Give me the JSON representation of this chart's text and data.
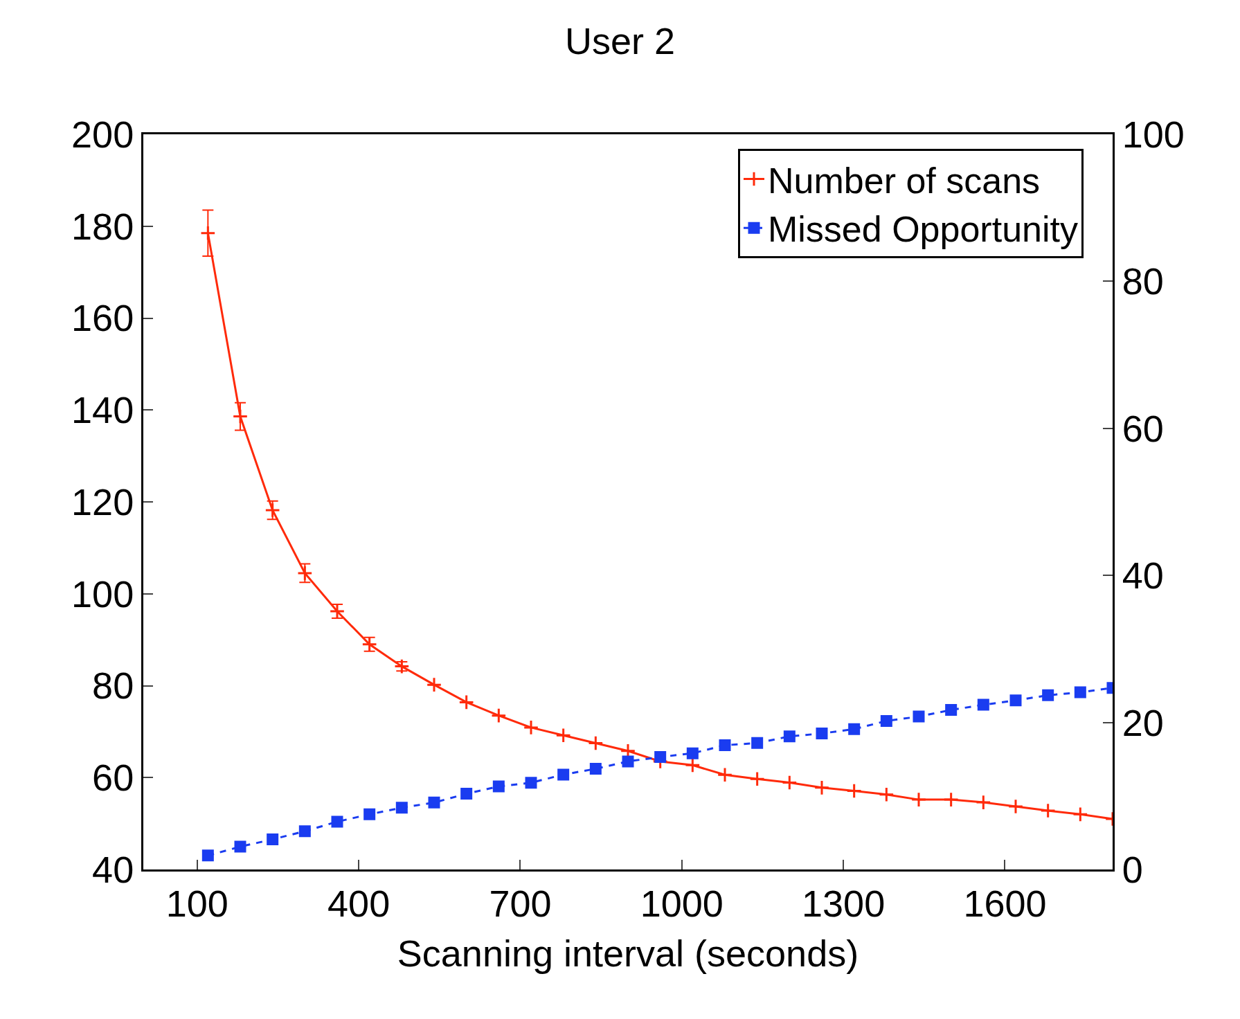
{
  "chart_data": {
    "type": "line",
    "title": "User 2",
    "xlabel": "Scanning interval (seconds)",
    "x": [
      120,
      180,
      240,
      300,
      360,
      420,
      480,
      540,
      600,
      660,
      720,
      780,
      840,
      900,
      960,
      1020,
      1080,
      1140,
      1200,
      1260,
      1320,
      1380,
      1440,
      1500,
      1560,
      1620,
      1680,
      1740,
      1800
    ],
    "series": [
      {
        "name": "Number of scans",
        "color": "#ff2a0a",
        "marker": "cross",
        "line_style": "solid",
        "values": [
          178.5,
          138.6,
          118.2,
          104.5,
          96.2,
          89,
          84.2,
          80.2,
          76.4,
          73.5,
          70.9,
          69.2,
          67.5,
          65.8,
          63.5,
          62.7,
          60.6,
          59.7,
          58.9,
          57.8,
          57.1,
          56.3,
          55.2,
          55.2,
          54.6,
          53.7,
          52.8,
          52,
          51
        ],
        "errors": [
          5,
          3,
          2,
          2,
          1.5,
          1.5,
          1,
          null,
          null,
          null,
          null,
          null,
          null,
          null,
          null,
          null,
          null,
          null,
          null,
          null,
          null,
          null,
          null,
          null,
          null,
          null,
          null,
          null,
          null
        ]
      },
      {
        "name": "Missed Opportunity",
        "color": "#1a3cf0",
        "marker": "square",
        "line_style": "dashed",
        "axis": "y2",
        "values": [
          1.9,
          3.1,
          4.1,
          5.2,
          6.5,
          7.5,
          8.4,
          9.1,
          10.3,
          11.3,
          11.8,
          12.9,
          13.7,
          14.7,
          15.3,
          15.8,
          16.9,
          17.2,
          18.1,
          18.5,
          19.1,
          20.2,
          20.8,
          21.7,
          22.4,
          23,
          23.7,
          24.1,
          24.7
        ]
      }
    ],
    "xlim": [
      0,
      1800
    ],
    "xticks": [
      100,
      400,
      700,
      1000,
      1300,
      1600
    ],
    "ylim": [
      40,
      200
    ],
    "yticks": [
      40,
      60,
      80,
      100,
      120,
      140,
      160,
      180,
      200
    ],
    "y2lim": [
      0,
      100
    ],
    "y2ticks": [
      0,
      20,
      40,
      60,
      80,
      100
    ],
    "legend": "top right"
  }
}
